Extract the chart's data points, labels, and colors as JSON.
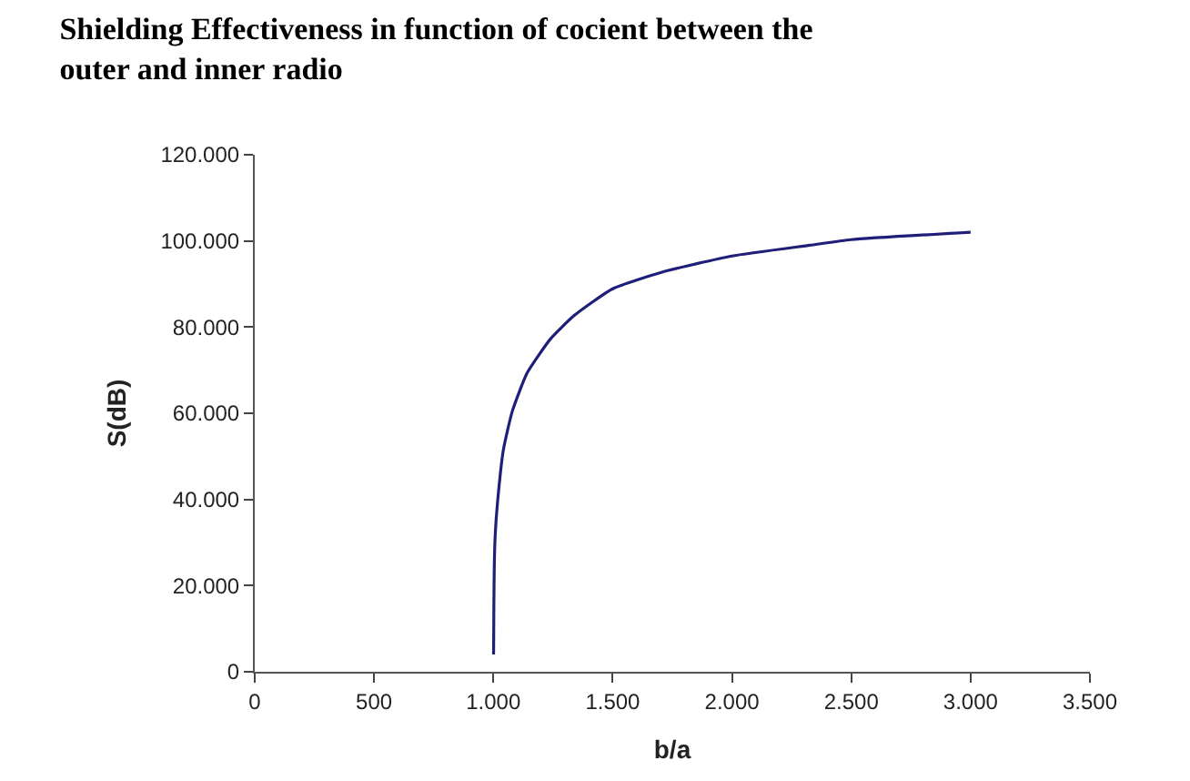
{
  "chart_data": {
    "type": "line",
    "title": "Shielding Effectiveness in function of cocient between the outer and inner radio",
    "xlabel": "b/a",
    "ylabel": "S(dB)",
    "series": [
      {
        "color": "#1f1f7a",
        "x": [
          1001,
          1002,
          1004,
          1008,
          1017,
          1042,
          1079,
          1141,
          1240,
          1339,
          1500,
          1710,
          2000,
          2327,
          2500,
          3000
        ],
        "values": [
          4000,
          15000,
          25000,
          32000,
          39000,
          51500,
          60400,
          69300,
          77300,
          82700,
          88900,
          92800,
          96500,
          99000,
          100300,
          102000
        ]
      }
    ],
    "xlim": [
      0,
      3500
    ],
    "ylim": [
      0,
      120000
    ],
    "xticks": [
      {
        "value": 0,
        "label": "0"
      },
      {
        "value": 500,
        "label": "500"
      },
      {
        "value": 1000,
        "label": "1.000"
      },
      {
        "value": 1500,
        "label": "1.500"
      },
      {
        "value": 2000,
        "label": "2.000"
      },
      {
        "value": 2500,
        "label": "2.500"
      },
      {
        "value": 3000,
        "label": "3.000"
      },
      {
        "value": 3500,
        "label": "3.500"
      }
    ],
    "yticks": [
      {
        "value": 0,
        "label": "0"
      },
      {
        "value": 20000,
        "label": "20.000"
      },
      {
        "value": 40000,
        "label": "40.000"
      },
      {
        "value": 60000,
        "label": "60.000"
      },
      {
        "value": 80000,
        "label": "80.000"
      },
      {
        "value": 100000,
        "label": "100.000"
      },
      {
        "value": 120000,
        "label": "120.000"
      }
    ],
    "marker": "none",
    "line_style": "solid"
  }
}
